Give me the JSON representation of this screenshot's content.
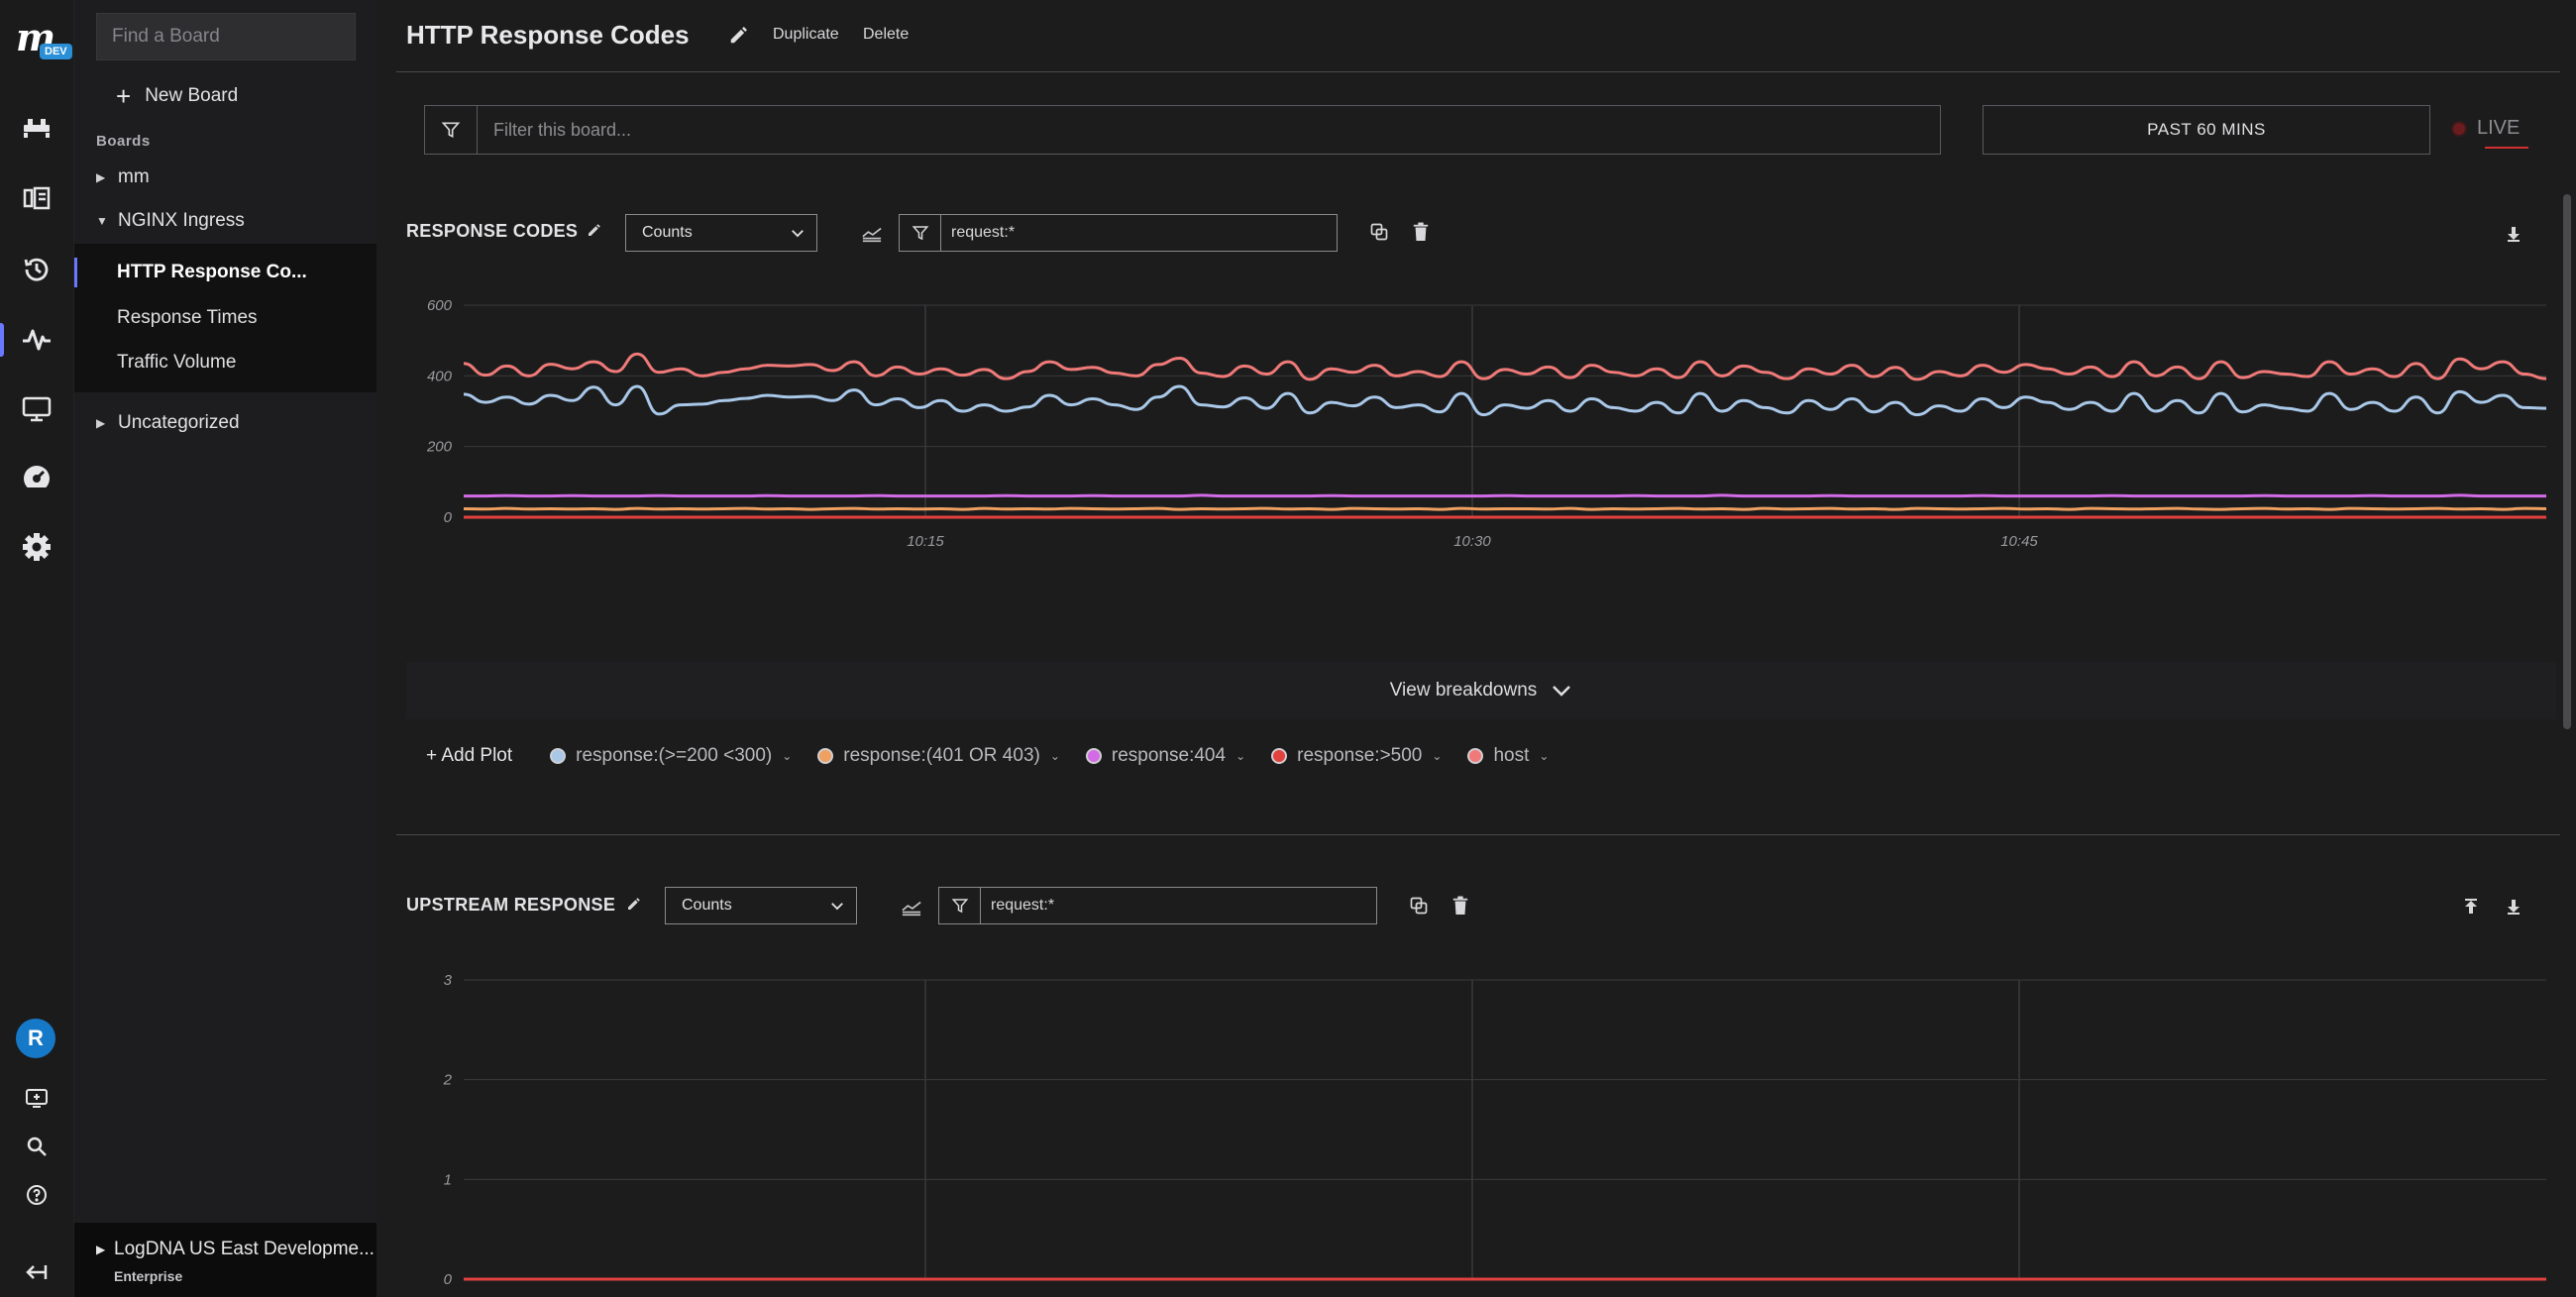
{
  "sidebar": {
    "search_placeholder": "Find a Board",
    "new_board_label": "New Board",
    "boards_label": "Boards",
    "groups": [
      {
        "label": "mm"
      },
      {
        "label": "NGINX Ingress"
      },
      {
        "label": "Uncategorized"
      }
    ],
    "boards": [
      {
        "label": "HTTP Response Co..."
      },
      {
        "label": "Response Times"
      },
      {
        "label": "Traffic Volume"
      }
    ],
    "org_name": "LogDNA US East Developme...",
    "org_plan": "Enterprise"
  },
  "rail": {
    "logo_letter": "m",
    "badge": "DEV",
    "avatar_initial": "R",
    "icons": [
      "pipeline-icon",
      "views-icon",
      "history-icon",
      "boards-icon",
      "screens-icon",
      "dashboard-icon",
      "settings-icon",
      "add-screen-icon",
      "search-icon",
      "help-icon",
      "collapse-icon"
    ]
  },
  "header": {
    "title": "HTTP Response Codes",
    "duplicate_label": "Duplicate",
    "delete_label": "Delete"
  },
  "filter": {
    "placeholder": "Filter this board...",
    "time_range": "PAST 60 MINS",
    "live_label": "LIVE"
  },
  "panels": [
    {
      "title": "RESPONSE CODES",
      "aggregation": "Counts",
      "query": "request:*",
      "breakdowns_label": "View breakdowns",
      "add_plot_label": "+ Add Plot",
      "legend": [
        {
          "label": "response:(>=200 <300)",
          "color": "#a9c8e8"
        },
        {
          "label": "response:(401 OR 403)",
          "color": "#f0a060"
        },
        {
          "label": "response:404",
          "color": "#d36be6"
        },
        {
          "label": "response:>500",
          "color": "#e3413e"
        },
        {
          "label": "host",
          "color": "#f07a78"
        }
      ]
    },
    {
      "title": "UPSTREAM RESPONSE",
      "aggregation": "Counts",
      "query": "request:*"
    }
  ],
  "chart_data": [
    {
      "type": "line",
      "ylim": [
        0,
        600
      ],
      "yticks": [
        "600",
        "400",
        "200",
        "0"
      ],
      "xticks": [
        "10:15",
        "10:30",
        "10:45"
      ],
      "series": [
        {
          "name": "host",
          "color": "#f07a78",
          "values": [
            435,
            402,
            428,
            400,
            433,
            420,
            440,
            412,
            462,
            410,
            420,
            400,
            410,
            420,
            430,
            428,
            432,
            415,
            440,
            400,
            425,
            405,
            420,
            402,
            418,
            392,
            412,
            440,
            418,
            424,
            408,
            400,
            432,
            450,
            408,
            398,
            428,
            405,
            440,
            390,
            420,
            410,
            430,
            400,
            412,
            398,
            440,
            392,
            418,
            405,
            425,
            395,
            430,
            410,
            400,
            420,
            395,
            440,
            400,
            428,
            410,
            392,
            420,
            405,
            430,
            398,
            424,
            390,
            412,
            400,
            430,
            410,
            432,
            420,
            405,
            425,
            398,
            440,
            400,
            425,
            392,
            440,
            395,
            412,
            405,
            398,
            440,
            405,
            420,
            398,
            435,
            392,
            448,
            420,
            440,
            405,
            392
          ]
        },
        {
          "name": "response:(>=200 <300)",
          "color": "#a9c8e8",
          "values": [
            348,
            325,
            340,
            320,
            345,
            330,
            368,
            318,
            370,
            292,
            318,
            320,
            330,
            336,
            345,
            340,
            342,
            330,
            360,
            318,
            335,
            310,
            330,
            300,
            318,
            300,
            312,
            345,
            318,
            335,
            318,
            305,
            340,
            370,
            318,
            312,
            338,
            308,
            350,
            295,
            325,
            315,
            340,
            310,
            318,
            298,
            350,
            290,
            318,
            308,
            330,
            300,
            335,
            310,
            300,
            325,
            295,
            350,
            300,
            330,
            310,
            295,
            330,
            305,
            335,
            298,
            325,
            290,
            315,
            300,
            335,
            310,
            340,
            325,
            305,
            325,
            300,
            350,
            300,
            330,
            295,
            350,
            298,
            318,
            308,
            300,
            350,
            305,
            325,
            300,
            340,
            295,
            355,
            325,
            345,
            310,
            308
          ]
        },
        {
          "name": "response:404",
          "color": "#d36be6",
          "values": [
            60,
            60,
            61,
            60,
            60,
            61,
            60,
            60,
            60,
            61,
            60,
            60,
            60,
            60,
            61,
            60,
            60,
            60,
            60,
            61,
            60,
            60,
            60,
            60,
            60,
            61,
            60,
            60,
            60,
            61,
            60,
            60,
            60,
            60,
            62,
            60,
            60,
            60,
            60,
            60,
            61,
            60,
            60,
            60,
            60,
            60,
            60,
            60,
            61,
            60,
            60,
            60,
            60,
            60,
            61,
            60,
            60,
            60,
            62,
            60,
            60,
            60,
            60,
            61,
            60,
            60,
            60,
            60,
            60,
            60,
            61,
            60,
            60,
            60,
            60,
            60,
            61,
            60,
            60,
            60,
            60,
            60,
            60,
            61,
            60,
            60,
            60,
            60,
            61,
            60,
            60,
            60,
            62,
            60,
            60,
            60,
            60
          ]
        },
        {
          "name": "response:(401 OR 403)",
          "color": "#f0a060",
          "values": [
            24,
            23,
            25,
            23,
            24,
            23,
            24,
            22,
            25,
            23,
            24,
            23,
            24,
            25,
            23,
            24,
            22,
            24,
            25,
            23,
            24,
            23,
            24,
            22,
            25,
            23,
            24,
            23,
            25,
            24,
            23,
            24,
            25,
            22,
            24,
            23,
            24,
            25,
            23,
            24,
            22,
            25,
            24,
            23,
            24,
            22,
            25,
            23,
            24,
            24,
            23,
            25,
            22,
            24,
            23,
            24,
            25,
            23,
            24,
            22,
            25,
            23,
            24,
            25,
            23,
            24,
            22,
            25,
            24,
            23,
            24,
            25,
            23,
            24,
            22,
            25,
            24,
            23,
            24,
            25,
            23,
            22,
            24,
            25,
            23,
            24,
            22,
            25,
            24,
            23,
            24,
            25,
            23,
            24,
            22,
            25,
            24
          ]
        },
        {
          "name": "response:>500",
          "color": "#e3413e",
          "values": [
            0,
            0,
            0,
            0,
            0,
            0,
            0,
            0,
            0,
            0,
            0,
            0,
            0,
            0,
            0,
            0,
            0,
            0,
            0,
            0,
            0,
            0,
            0,
            0,
            0,
            0,
            0,
            0,
            0,
            0,
            0,
            0,
            0,
            0,
            0,
            0,
            0,
            0,
            0,
            0,
            0,
            0,
            0,
            0,
            0,
            0,
            0,
            0,
            0,
            0,
            0,
            0,
            0,
            0,
            0,
            0,
            0,
            0,
            0,
            0,
            0,
            0,
            0,
            0,
            0,
            0,
            0,
            0,
            0,
            0,
            0,
            0,
            0,
            0,
            0,
            0,
            0,
            0,
            0,
            0,
            0,
            0,
            0,
            0,
            0,
            0,
            0,
            0,
            0,
            0,
            0,
            0,
            0,
            0,
            0,
            0,
            0
          ]
        }
      ]
    },
    {
      "type": "line",
      "ylim": [
        0,
        3
      ],
      "yticks": [
        "3",
        "2",
        "1",
        "0"
      ],
      "xticks": [],
      "series": [
        {
          "color": "#e3413e",
          "values": [
            0,
            0
          ]
        }
      ]
    }
  ]
}
